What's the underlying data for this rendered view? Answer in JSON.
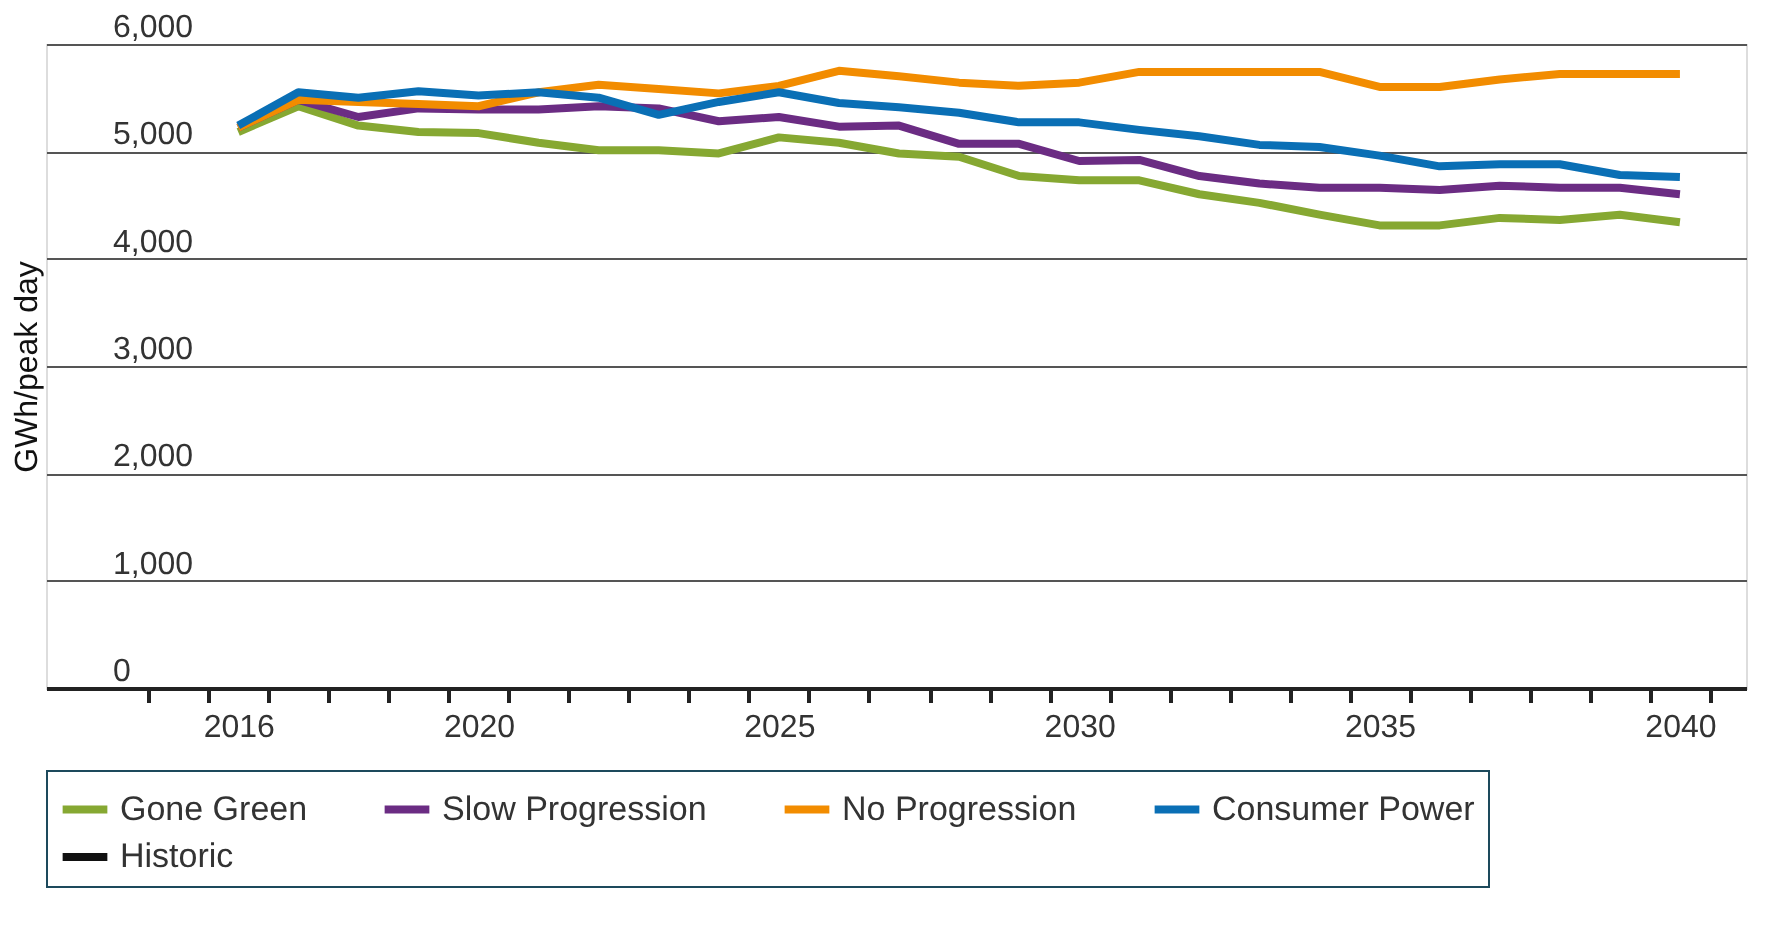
{
  "chart_data": {
    "type": "line",
    "ylabel": "GWh/peak day",
    "x": [
      2016,
      2017,
      2018,
      2019,
      2020,
      2021,
      2022,
      2023,
      2024,
      2025,
      2026,
      2027,
      2028,
      2029,
      2030,
      2031,
      2032,
      2033,
      2034,
      2035,
      2036,
      2037,
      2038,
      2039,
      2040
    ],
    "xlim": [
      2012.8,
      2041.1
    ],
    "xticks": [
      {
        "value": 2014.5,
        "label": null
      },
      {
        "value": 2015.5,
        "label": null
      },
      {
        "value": 2016,
        "label": "2016"
      },
      {
        "value": 2016.5,
        "label": null
      },
      {
        "value": 2017.5,
        "label": null
      },
      {
        "value": 2018.5,
        "label": null
      },
      {
        "value": 2019.5,
        "label": null
      },
      {
        "value": 2020,
        "label": "2020"
      },
      {
        "value": 2020.5,
        "label": null
      },
      {
        "value": 2021.5,
        "label": null
      },
      {
        "value": 2022.5,
        "label": null
      },
      {
        "value": 2023.5,
        "label": null
      },
      {
        "value": 2024.5,
        "label": null
      },
      {
        "value": 2025,
        "label": "2025"
      },
      {
        "value": 2025.5,
        "label": null
      },
      {
        "value": 2026.5,
        "label": null
      },
      {
        "value": 2027.5,
        "label": null
      },
      {
        "value": 2028.5,
        "label": null
      },
      {
        "value": 2029.5,
        "label": null
      },
      {
        "value": 2030,
        "label": "2030"
      },
      {
        "value": 2030.5,
        "label": null
      },
      {
        "value": 2031.5,
        "label": null
      },
      {
        "value": 2032.5,
        "label": null
      },
      {
        "value": 2033.5,
        "label": null
      },
      {
        "value": 2034.5,
        "label": null
      },
      {
        "value": 2035,
        "label": "2035"
      },
      {
        "value": 2035.5,
        "label": null
      },
      {
        "value": 2036.5,
        "label": null
      },
      {
        "value": 2037.5,
        "label": null
      },
      {
        "value": 2038.5,
        "label": null
      },
      {
        "value": 2039.5,
        "label": null
      },
      {
        "value": 2040,
        "label": "2040"
      },
      {
        "value": 2040.5,
        "label": null
      }
    ],
    "ylim": [
      0,
      6000
    ],
    "yticks": [
      {
        "value": 0,
        "label": "0"
      },
      {
        "value": 1000,
        "label": "1,000"
      },
      {
        "value": 2000,
        "label": "2,000"
      },
      {
        "value": 3000,
        "label": "3,000"
      },
      {
        "value": 4000,
        "label": "4,000"
      },
      {
        "value": 5000,
        "label": "5,000"
      },
      {
        "value": 6000,
        "label": "6,000"
      }
    ],
    "grid": "y",
    "legend": "bottom",
    "line_style": "solid",
    "marker": "none",
    "series": [
      {
        "name": "Gone Green",
        "color": "#86a832",
        "values": [
          5180,
          5420,
          5240,
          5180,
          5170,
          5080,
          5010,
          5010,
          4980,
          5130,
          5080,
          4980,
          4950,
          4770,
          4730,
          4730,
          4600,
          4520,
          4410,
          4310,
          4310,
          4380,
          4360,
          4410,
          4340
        ]
      },
      {
        "name": "Slow Progression",
        "color": "#6b2c83",
        "values": [
          5220,
          5480,
          5320,
          5400,
          5390,
          5390,
          5420,
          5400,
          5280,
          5320,
          5230,
          5240,
          5070,
          5070,
          4910,
          4920,
          4770,
          4700,
          4660,
          4660,
          4640,
          4680,
          4660,
          4660,
          4600
        ]
      },
      {
        "name": "No Progression",
        "color": "#f28c00",
        "values": [
          5220,
          5480,
          5460,
          5440,
          5420,
          5550,
          5620,
          5580,
          5540,
          5610,
          5750,
          5700,
          5640,
          5610,
          5640,
          5740,
          5740,
          5740,
          5740,
          5600,
          5600,
          5670,
          5720,
          5720,
          5720
        ]
      },
      {
        "name": "Consumer Power",
        "color": "#0a6fb5",
        "values": [
          5240,
          5550,
          5500,
          5560,
          5520,
          5550,
          5500,
          5340,
          5460,
          5550,
          5450,
          5410,
          5360,
          5270,
          5270,
          5200,
          5140,
          5060,
          5040,
          4960,
          4860,
          4880,
          4880,
          4780,
          4760
        ]
      },
      {
        "name": "Historic",
        "color": "#111111",
        "values": [
          null,
          null,
          null,
          null,
          null,
          null,
          null,
          null,
          null,
          null,
          null,
          null,
          null,
          null,
          null,
          null,
          null,
          null,
          null,
          null,
          null,
          null,
          null,
          null,
          null
        ]
      }
    ]
  }
}
